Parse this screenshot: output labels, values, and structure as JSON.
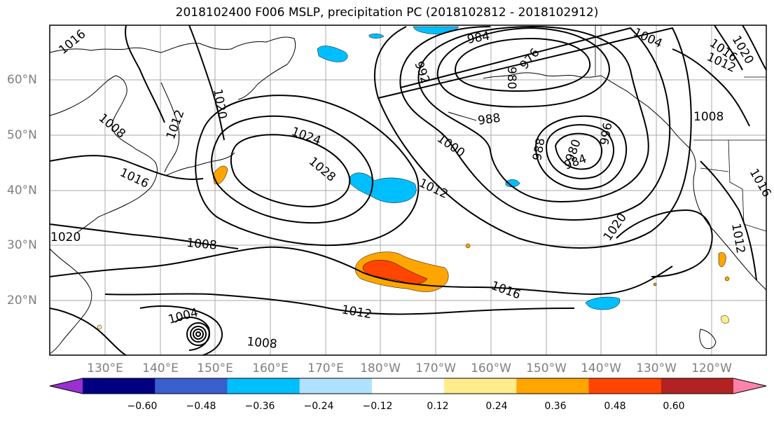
{
  "title": "2018102400 F006 MSLP, precipitation PC (2018102812 - 2018102912)",
  "lat_labels": [
    "60°N",
    "50°N",
    "40°N",
    "30°N",
    "20°N"
  ],
  "lon_labels": [
    "130°E",
    "140°E",
    "150°E",
    "160°E",
    "170°E",
    "180°W",
    "170°W",
    "160°W",
    "150°W",
    "140°W",
    "130°W",
    "120°W"
  ],
  "colorbar": {
    "colors": [
      "#9b30d0",
      "#000080",
      "#3a5fcd",
      "#00bfff",
      "#b0e2ff",
      "#ffffff",
      "#ffec8b",
      "#ffa500",
      "#ff4500",
      "#b22222",
      "#ff82ab"
    ],
    "ticks": [
      "−0.60",
      "−0.48",
      "−0.36",
      "−0.24",
      "−0.12",
      "0.12",
      "0.24",
      "0.36",
      "0.48",
      "0.60"
    ]
  },
  "isobar_labels": [
    "1016",
    "1008",
    "1012",
    "1020",
    "1016",
    "1020",
    "1008",
    "1024",
    "1028",
    "1012",
    "1000",
    "988",
    "992",
    "984",
    "980",
    "976",
    "988",
    "984",
    "996",
    "980",
    "1004",
    "1016",
    "1020",
    "1012",
    "1008",
    "1016",
    "1012",
    "1020",
    "1016",
    "1012",
    "1004",
    "1008"
  ]
}
